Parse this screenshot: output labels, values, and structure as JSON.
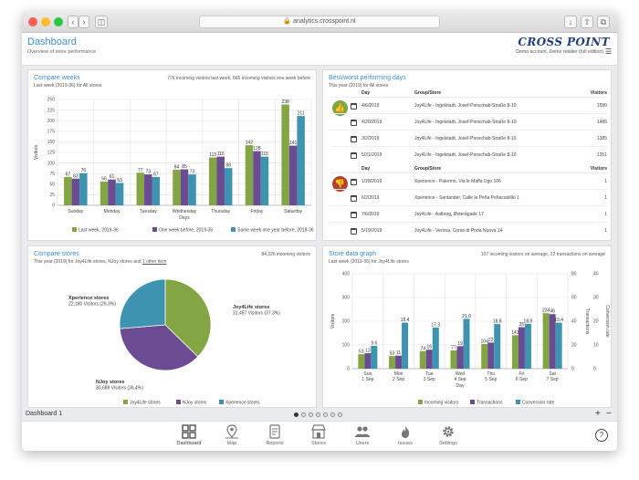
{
  "browser": {
    "url": "analytics.crosspoint.nl"
  },
  "header": {
    "title": "Dashboard",
    "subtitle": "Overview of store performance",
    "brand": "CROSS POINT",
    "account": "Demo account, Demo retailer (full edition)"
  },
  "compare_weeks": {
    "title": "Compare weeks",
    "subtitle": "Last week (2019-36) for All stores",
    "summary": "776 incoming visitors last week, 665 incoming visitors one week before"
  },
  "best_worst": {
    "title": "Best/worst performing days",
    "subtitle": "This year (2019) for All stores",
    "col_day": "Day",
    "col_group": "Group/Store",
    "col_visitors": "Visitors",
    "best": [
      {
        "day": "4/6/2019",
        "store": "Joy4Life - Ingolstadt, Josef-Ponschab-Straße 8-10",
        "visitors": "1580"
      },
      {
        "day": "4/20/2019",
        "store": "Joy4Life - Ingolstadt, Josef-Ponschab-Straße 8-10",
        "visitors": "1486"
      },
      {
        "day": "3/2/2019",
        "store": "Joy4Life - Ingolstadt, Josef-Ponschab-Straße 8-10",
        "visitors": "1385"
      },
      {
        "day": "5/31/2019",
        "store": "Joy4Life - Ingolstadt, Josef-Ponschab-Straße 8-10",
        "visitors": "1351"
      }
    ],
    "worst": [
      {
        "day": "1/28/2019",
        "store": "Xperience - Palermo, Via le Maffa Ugo 106",
        "visitors": "1"
      },
      {
        "day": "6/2/2019",
        "store": "Xperience - Santander, Calle la Peña Peñacastillo 1",
        "visitors": "1"
      },
      {
        "day": "7/6/2019",
        "store": "Joy4Life - Aalborg, Østerågade 17",
        "visitors": "1"
      },
      {
        "day": "5/19/2019",
        "store": "Joy4Life - Verona, Corso di Porta Nuova 14",
        "visitors": "1"
      }
    ]
  },
  "compare_stores": {
    "title": "Compare stores",
    "subtitle": "This year (2019) for Joy4Life stores, NJoy stores and 1 other item",
    "summary": "84,326 incoming visitors"
  },
  "store_data_graph": {
    "title": "Store data graph",
    "subtitle": "Last week (2019-36) for Joy4Life stores",
    "summary": "107 incoming visitors on average, 22 transactions on average"
  },
  "chart_data": [
    {
      "type": "bar",
      "xlabel": "Days",
      "ylabel": "Visitors",
      "ylim": [
        0,
        250
      ],
      "yticks": [
        0,
        25,
        50,
        75,
        100,
        125,
        150,
        175,
        200,
        225,
        250
      ],
      "grid": true,
      "legend_position": "bottom",
      "categories": [
        "Sunday",
        "Monday",
        "Tuesday",
        "Wednesday",
        "Thursday",
        "Friday",
        "Saturday"
      ],
      "series": [
        {
          "name": "Last week, 2019-36",
          "color": "#84a543",
          "values": [
            67,
            56,
            77,
            84,
            113,
            142,
            238
          ]
        },
        {
          "name": "One week before, 2019-35",
          "color": "#6b4c93",
          "values": [
            63,
            61,
            73,
            85,
            115,
            128,
            141
          ]
        },
        {
          "name": "Same week one year before, 2018-36",
          "color": "#3d93b0",
          "values": [
            76,
            53,
            67,
            73,
            88,
            115,
            211
          ]
        }
      ]
    },
    {
      "type": "pie",
      "series": [
        {
          "name": "Joy4Life stores",
          "color": "#84a543",
          "value": 31457,
          "label": "31,457 Visitors (37.3%)"
        },
        {
          "name": "NJoy stores",
          "color": "#6b4c93",
          "value": 30689,
          "label": "30,689 Visitors (36.4%)"
        },
        {
          "name": "Xperience stores",
          "color": "#3d93b0",
          "value": 22180,
          "label": "22,180 Visitors (26.3%)"
        }
      ]
    },
    {
      "type": "bar",
      "xlabel": "Day",
      "ylabel": "Visitors",
      "ylabel_right1": "Transactions",
      "ylabel_right2": "Conversion rate",
      "ylim": [
        0,
        400
      ],
      "yticks": [
        0,
        100,
        200,
        300,
        400
      ],
      "ylim_right1": [
        0,
        80
      ],
      "yticks_right1": [
        0,
        20,
        40,
        60,
        80
      ],
      "ylim_right2": [
        0,
        40
      ],
      "yticks_right2": [
        0,
        10,
        20,
        30,
        40
      ],
      "grid": true,
      "legend_position": "bottom",
      "categories": [
        [
          "Sun",
          "1 Sep"
        ],
        [
          "Mon",
          "2 Sep"
        ],
        [
          "Tue",
          "3 Sep"
        ],
        [
          "Wed",
          "4 Sep"
        ],
        [
          "Thu",
          "5 Sep"
        ],
        [
          "Fri",
          "6 Sep"
        ],
        [
          "Sat",
          "7 Sep"
        ]
      ],
      "series": [
        {
          "name": "Incoming visitors",
          "color": "#84a543",
          "axis": "left",
          "values": [
            61,
            53,
            74,
            77,
            104,
            141,
            234
          ]
        },
        {
          "name": "Transactions",
          "color": "#6b4c93",
          "axis": "right1",
          "values": [
            13,
            11,
            16,
            19,
            22,
            35,
            46
          ]
        },
        {
          "name": "Conversion rate",
          "color": "#3d93b0",
          "axis": "right2",
          "values": [
            9.6,
            19.4,
            17.3,
            21.0,
            18.8,
            18.9,
            19.4
          ]
        }
      ]
    }
  ],
  "dashbar": {
    "label": "Dashboard 1",
    "plus": "+",
    "minus": "−"
  },
  "nav": {
    "items": [
      {
        "label": "Dashboard",
        "icon": "grid-icon"
      },
      {
        "label": "Map",
        "icon": "map-pin-icon"
      },
      {
        "label": "Reports",
        "icon": "document-icon"
      },
      {
        "label": "Stores",
        "icon": "store-icon"
      },
      {
        "label": "Users",
        "icon": "users-icon"
      },
      {
        "label": "Issues",
        "icon": "flame-icon"
      },
      {
        "label": "Settings",
        "icon": "gear-icon"
      }
    ],
    "help": "?"
  }
}
